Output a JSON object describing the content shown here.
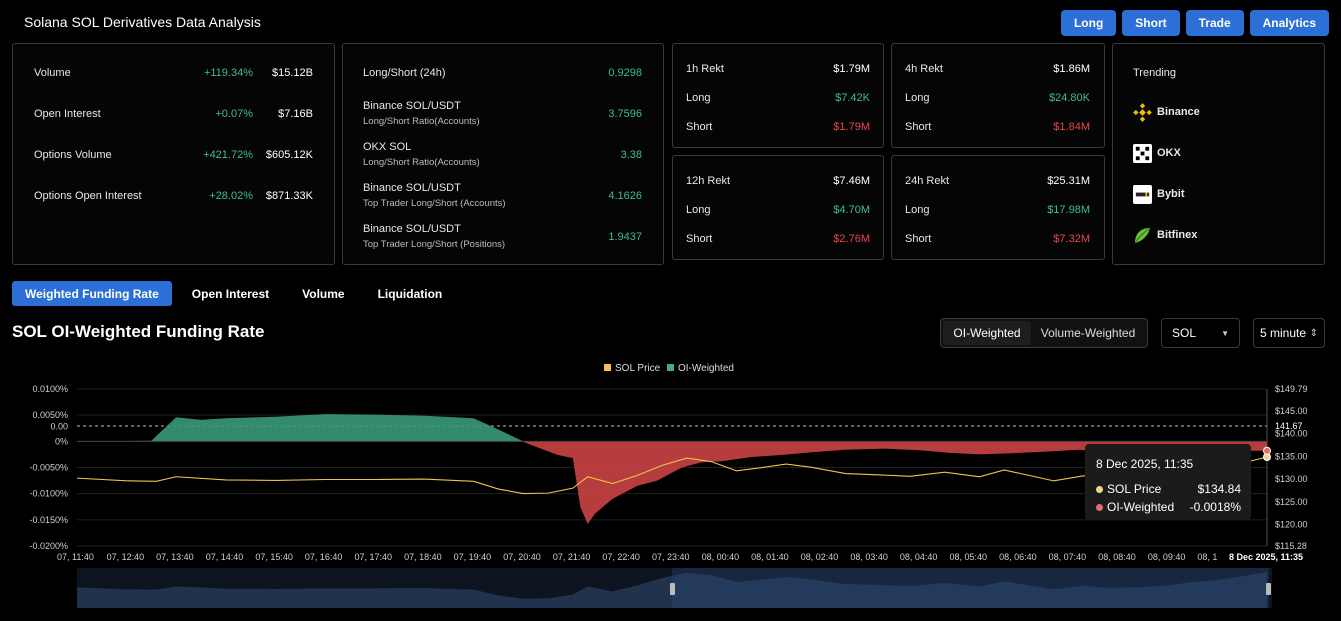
{
  "header": {
    "title": "Solana SOL Derivatives Data Analysis",
    "actions": [
      "Long",
      "Short",
      "Trade",
      "Analytics"
    ]
  },
  "market_card": {
    "rows": [
      {
        "label": "Volume",
        "change": "+119.34%",
        "value": "$15.12B"
      },
      {
        "label": "Open Interest",
        "change": "+0.07%",
        "value": "$7.16B"
      },
      {
        "label": "Options Volume",
        "change": "+421.72%",
        "value": "$605.12K"
      },
      {
        "label": "Options Open Interest",
        "change": "+28.02%",
        "value": "$871.33K"
      }
    ]
  },
  "ratio_card": {
    "rows": [
      {
        "label": "Long/Short (24h)",
        "sub": "",
        "value": "0.9298"
      },
      {
        "label": "Binance SOL/USDT",
        "sub": "Long/Short Ratio(Accounts)",
        "value": "3.7596"
      },
      {
        "label": "OKX SOL",
        "sub": "Long/Short Ratio(Accounts)",
        "value": "3.38"
      },
      {
        "label": "Binance SOL/USDT",
        "sub": "Top Trader Long/Short (Accounts)",
        "value": "4.1626"
      },
      {
        "label": "Binance SOL/USDT",
        "sub": "Top Trader Long/Short (Positions)",
        "value": "1.9437"
      }
    ]
  },
  "rekt": [
    {
      "title": "1h Rekt",
      "total": "$1.79M",
      "long_label": "Long",
      "long": "$7.42K",
      "short_label": "Short",
      "short": "$1.79M"
    },
    {
      "title": "4h Rekt",
      "total": "$1.86M",
      "long_label": "Long",
      "long": "$24.80K",
      "short_label": "Short",
      "short": "$1.84M"
    },
    {
      "title": "12h Rekt",
      "total": "$7.46M",
      "long_label": "Long",
      "long": "$4.70M",
      "short_label": "Short",
      "short": "$2.76M"
    },
    {
      "title": "24h Rekt",
      "total": "$25.31M",
      "long_label": "Long",
      "long": "$17.98M",
      "short_label": "Short",
      "short": "$7.32M"
    }
  ],
  "trending": {
    "title": "Trending",
    "items": [
      {
        "name": "Binance",
        "icon": "binance-icon"
      },
      {
        "name": "OKX",
        "icon": "okx-icon"
      },
      {
        "name": "Bybit",
        "icon": "bybit-icon"
      },
      {
        "name": "Bitfinex",
        "icon": "bitfinex-icon"
      }
    ]
  },
  "tabs": [
    "Weighted Funding Rate",
    "Open Interest",
    "Volume",
    "Liquidation"
  ],
  "chart_controls": {
    "title": "SOL OI-Weighted Funding Rate",
    "segment": [
      "OI-Weighted",
      "Volume-Weighted"
    ],
    "symbol": "SOL",
    "interval": "5 minute"
  },
  "tooltip": {
    "date": "8 Dec 2025, 11:35",
    "rows": [
      {
        "label": "SOL Price",
        "value": "$134.84"
      },
      {
        "label": "OI-Weighted",
        "value": "-0.0018%"
      }
    ]
  },
  "colors": {
    "accent": "#2c6fd6",
    "positive": "#3fbf8a",
    "negative": "#e5474a",
    "price_line": "#f0c24b"
  },
  "chart_data": {
    "type": "area",
    "legend": [
      "SOL Price",
      "OI-Weighted"
    ],
    "legend_position": "top-center",
    "x_ticks": [
      "07, 11:40",
      "07, 12:40",
      "07, 13:40",
      "07, 14:40",
      "07, 15:40",
      "07, 16:40",
      "07, 17:40",
      "07, 18:40",
      "07, 19:40",
      "07, 20:40",
      "07, 21:40",
      "07, 22:40",
      "07, 23:40",
      "08, 00:40",
      "08, 01:40",
      "08, 02:40",
      "08, 03:40",
      "08, 04:40",
      "08, 05:40",
      "08, 06:40",
      "08, 07:40",
      "08, 08:40",
      "08, 09:40",
      "08, 1",
      "8 Dec 2025, 11:35"
    ],
    "y_left_ticks": [
      "0.0100%",
      "0.0050%",
      "0.00",
      "0%",
      "-0.0050%",
      "-0.0100%",
      "-0.0150%",
      "-0.0200%"
    ],
    "y_right_ticks": [
      "$149.79",
      "$145.00",
      "141.67",
      "$140.00",
      "$135.00",
      "$130.00",
      "$125.00",
      "$120.00",
      "$115.28"
    ],
    "y_left_range": [
      -0.02,
      0.01
    ],
    "y_right_range": [
      115.28,
      149.79
    ],
    "funding_series": [
      [
        0,
        0
      ],
      [
        1.5,
        0.0001
      ],
      [
        2,
        0.0046
      ],
      [
        2.5,
        0.0041
      ],
      [
        3,
        0.0044
      ],
      [
        4,
        0.0047
      ],
      [
        5,
        0.0052
      ],
      [
        6,
        0.0051
      ],
      [
        7,
        0.0049
      ],
      [
        8,
        0.0044
      ],
      [
        8.6,
        0.0018
      ],
      [
        9,
        -0.0001
      ],
      [
        9.3,
        -0.0012
      ],
      [
        9.7,
        -0.0026
      ],
      [
        10,
        -0.0032
      ],
      [
        10.15,
        -0.0125
      ],
      [
        10.3,
        -0.0158
      ],
      [
        10.45,
        -0.0138
      ],
      [
        10.8,
        -0.011
      ],
      [
        11.3,
        -0.0085
      ],
      [
        11.7,
        -0.0075
      ],
      [
        12.2,
        -0.005
      ],
      [
        12.6,
        -0.004
      ],
      [
        13,
        -0.0038
      ],
      [
        13.6,
        -0.003
      ],
      [
        14.2,
        -0.0026
      ],
      [
        14.8,
        -0.0021
      ],
      [
        15.5,
        -0.0016
      ],
      [
        16.3,
        -0.0014
      ],
      [
        17,
        -0.0017
      ],
      [
        17.6,
        -0.0022
      ],
      [
        18.2,
        -0.0025
      ],
      [
        18.8,
        -0.0023
      ],
      [
        19.5,
        -0.002
      ],
      [
        20.2,
        -0.0016
      ],
      [
        20.8,
        -0.0021
      ],
      [
        21.4,
        -0.0015
      ],
      [
        22,
        -0.0012
      ],
      [
        22.6,
        -0.0016
      ],
      [
        23.2,
        -0.0018
      ],
      [
        24,
        -0.0018
      ]
    ],
    "price_series": [
      [
        0,
        130.2
      ],
      [
        1,
        129.6
      ],
      [
        1.6,
        129.5
      ],
      [
        2,
        130.5
      ],
      [
        3,
        129.8
      ],
      [
        4,
        129.7
      ],
      [
        5,
        129.9
      ],
      [
        6,
        129.9
      ],
      [
        7,
        130.0
      ],
      [
        8,
        129.5
      ],
      [
        8.5,
        127.8
      ],
      [
        9,
        126.8
      ],
      [
        9.5,
        126.9
      ],
      [
        10,
        128.0
      ],
      [
        10.3,
        130.5
      ],
      [
        10.8,
        129.0
      ],
      [
        11.3,
        130.8
      ],
      [
        11.8,
        133.0
      ],
      [
        12.3,
        134.6
      ],
      [
        12.8,
        133.8
      ],
      [
        13.3,
        131.8
      ],
      [
        13.8,
        132.5
      ],
      [
        14.3,
        133.3
      ],
      [
        14.8,
        132.6
      ],
      [
        15.5,
        131.2
      ],
      [
        16.2,
        130.9
      ],
      [
        16.8,
        130.6
      ],
      [
        17.5,
        131.5
      ],
      [
        18.2,
        130.5
      ],
      [
        18.7,
        132.0
      ],
      [
        19.2,
        130.8
      ],
      [
        19.7,
        129.6
      ],
      [
        20.3,
        130.7
      ],
      [
        20.8,
        130.0
      ],
      [
        21.5,
        130.3
      ],
      [
        22,
        130.8
      ],
      [
        22.5,
        131.8
      ],
      [
        23,
        132.4
      ],
      [
        23.5,
        133.5
      ],
      [
        24,
        134.84
      ]
    ],
    "grid": true
  }
}
